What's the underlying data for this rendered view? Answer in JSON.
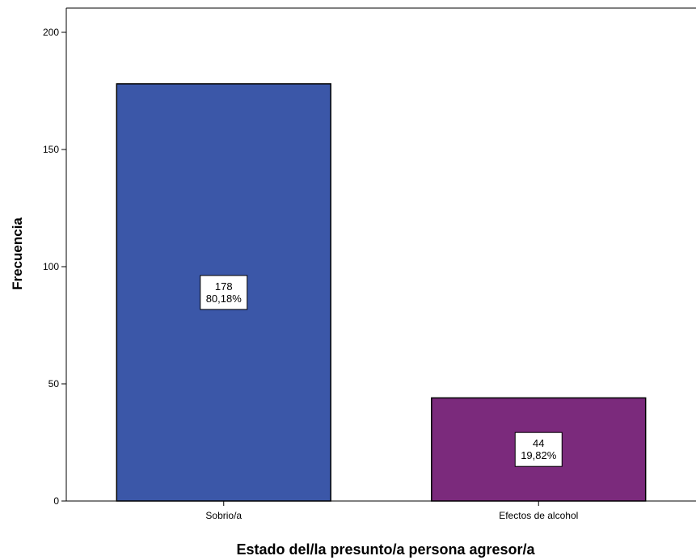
{
  "chart_data": {
    "type": "bar",
    "categories": [
      "Sobrio/a",
      "Efectos de alcohol"
    ],
    "values": [
      178,
      44
    ],
    "percent_labels": [
      "80,18%",
      "19,82%"
    ],
    "xlabel": "Estado del/la presunto/a persona agresor/a",
    "ylabel": "Frecuencia",
    "ylim": [
      0,
      200
    ],
    "yticks": [
      0,
      50,
      100,
      150,
      200
    ],
    "grid": false,
    "bar_colors": [
      "#3b57a8",
      "#7b2a7c"
    ],
    "bar_edge_color": "#000000"
  }
}
